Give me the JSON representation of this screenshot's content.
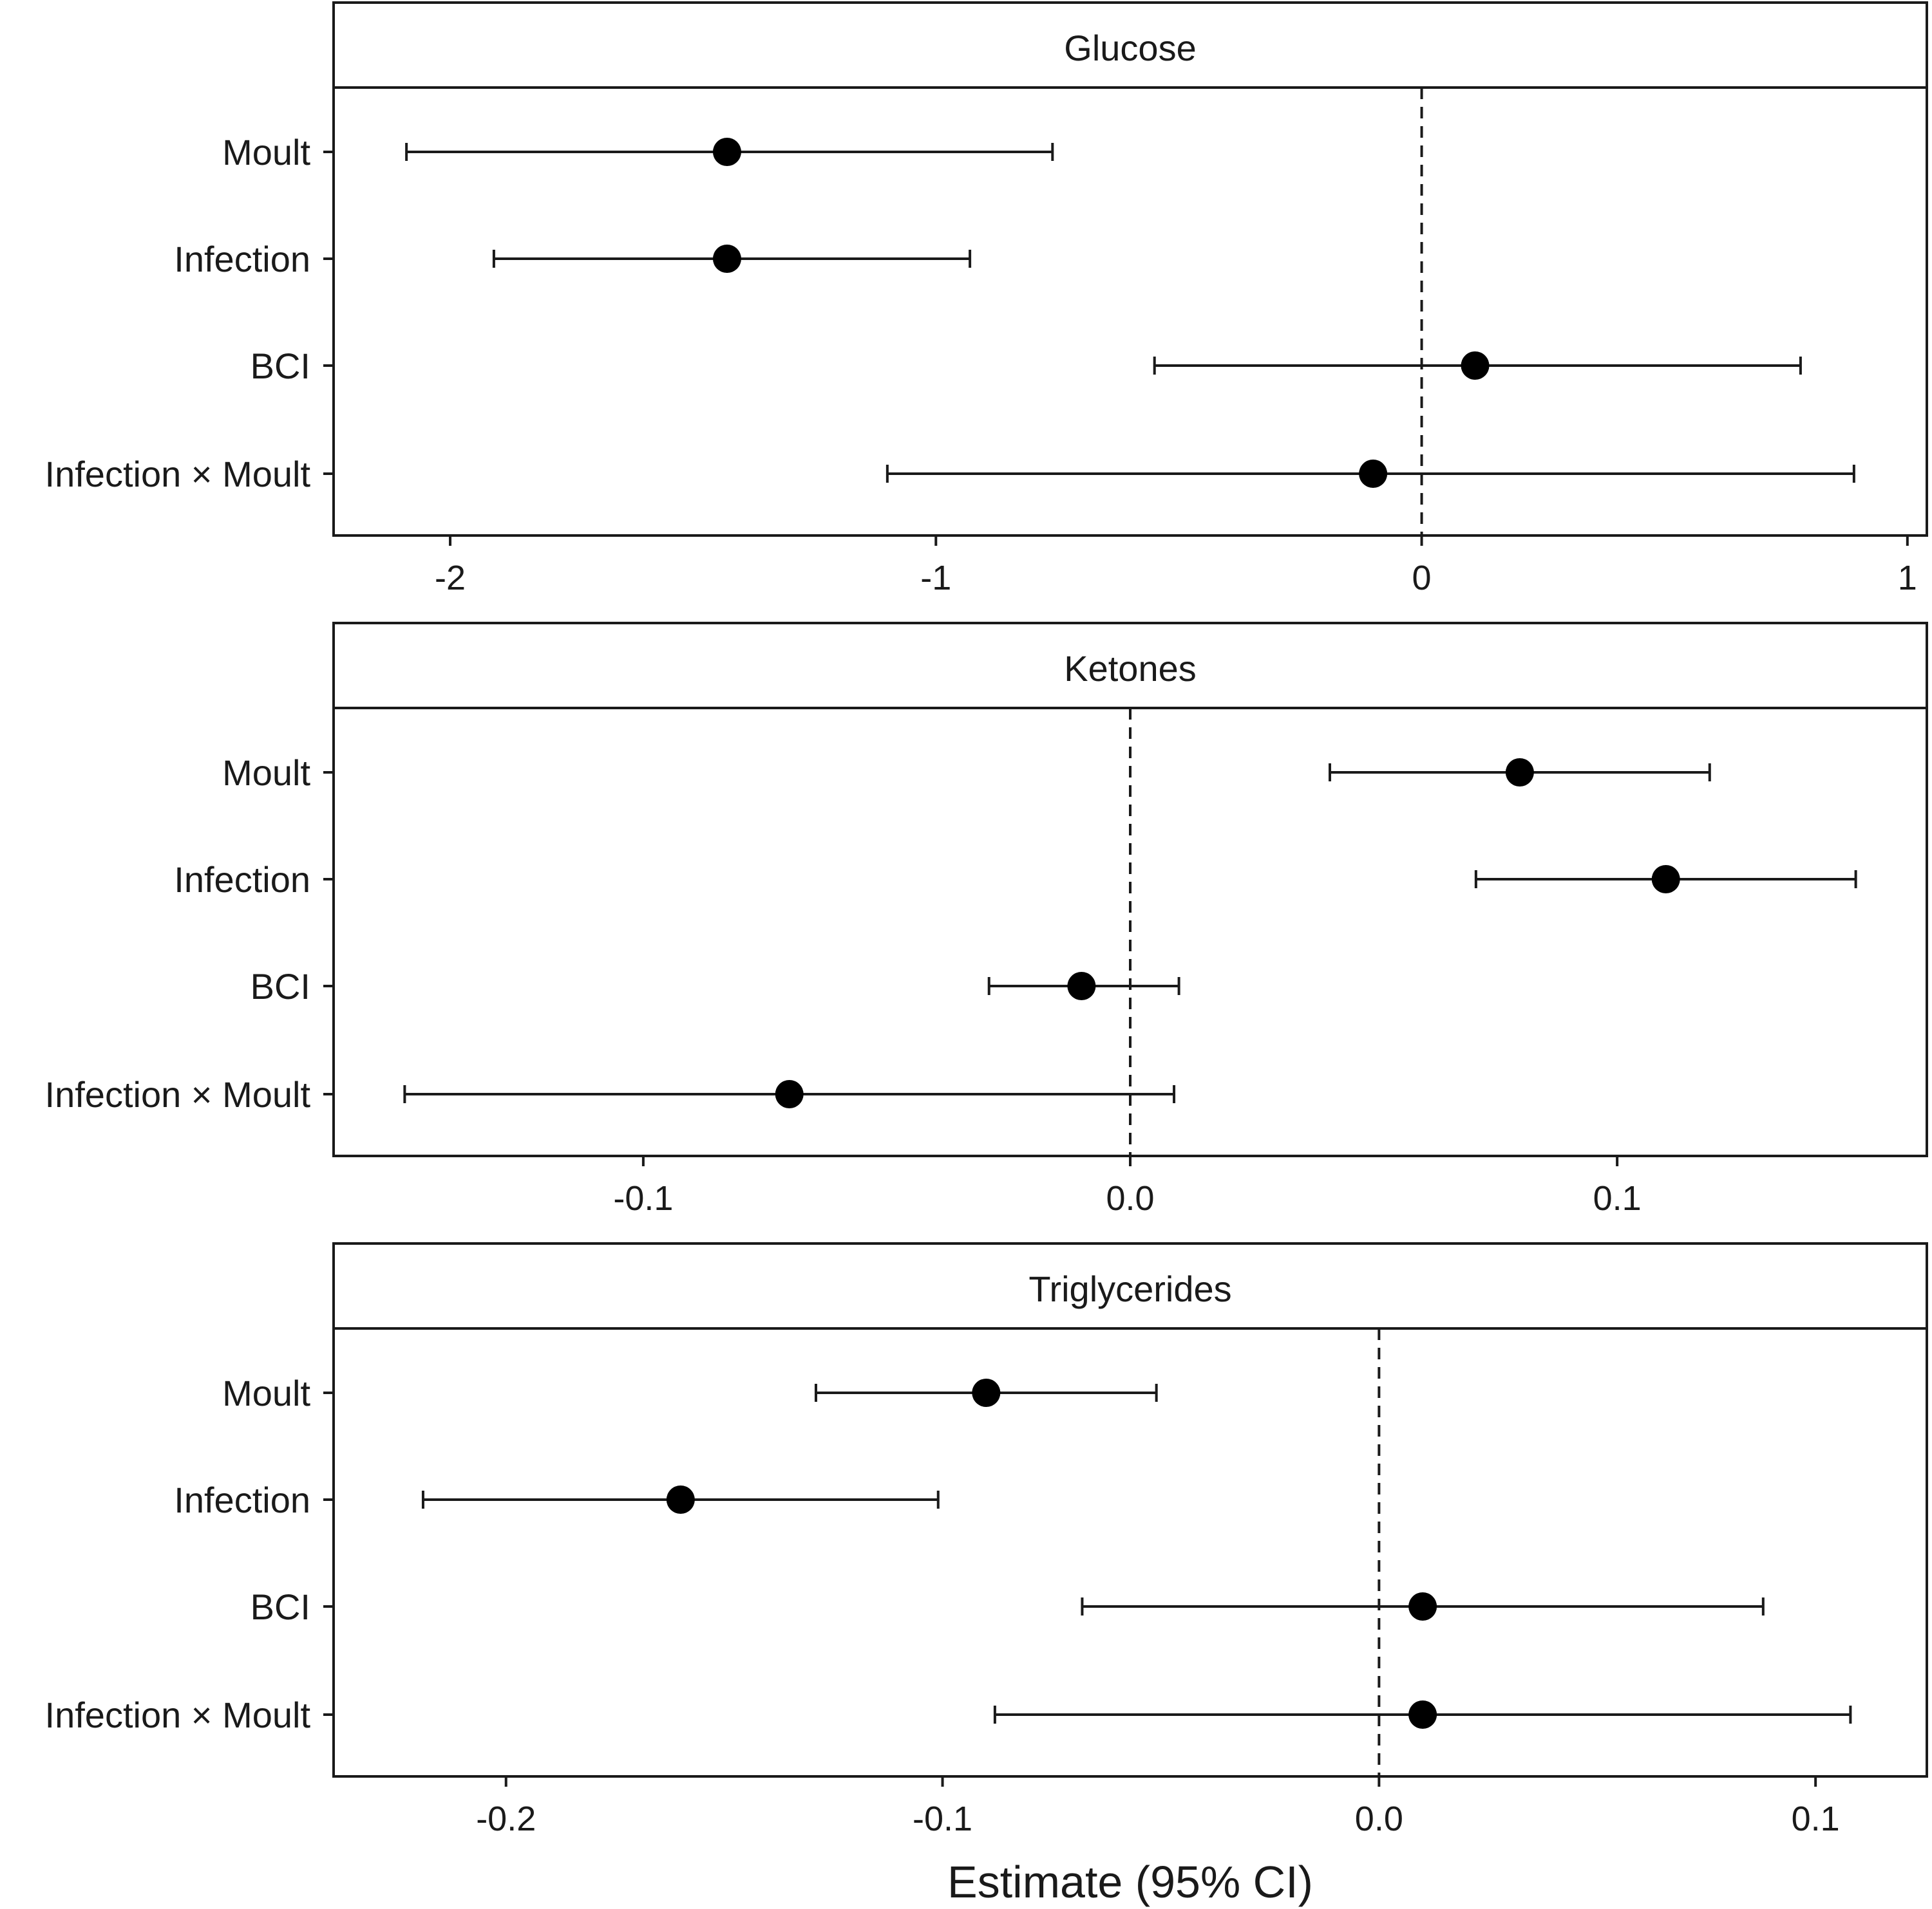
{
  "chart_data": [
    {
      "type": "forest",
      "title": "Glucose",
      "categories": [
        "Moult",
        "Infection",
        "BCI",
        "Infection × Moult"
      ],
      "estimates": [
        -1.43,
        -1.43,
        0.11,
        -0.1
      ],
      "ci_low": [
        -2.09,
        -1.91,
        -0.55,
        -1.1
      ],
      "ci_high": [
        -0.76,
        -0.93,
        0.78,
        0.89
      ],
      "xlim": [
        -2.24,
        1.04
      ],
      "xticks": [
        -2,
        -1,
        0,
        1
      ],
      "xtick_labels": [
        "-2",
        "-1",
        "0",
        "1"
      ],
      "reference_line": 0
    },
    {
      "type": "forest",
      "title": "Ketones",
      "categories": [
        "Moult",
        "Infection",
        "BCI",
        "Infection × Moult"
      ],
      "estimates": [
        0.08,
        0.11,
        -0.01,
        -0.07
      ],
      "ci_low": [
        0.041,
        0.071,
        -0.029,
        -0.149
      ],
      "ci_high": [
        0.119,
        0.149,
        0.01,
        0.009
      ],
      "xlim": [
        -0.1636,
        0.1636
      ],
      "xticks": [
        -0.1,
        0.0,
        0.1
      ],
      "xtick_labels": [
        "-0.1",
        "0.0",
        "0.1"
      ],
      "reference_line": 0
    },
    {
      "type": "forest",
      "title": "Triglycerides",
      "categories": [
        "Moult",
        "Infection",
        "BCI",
        "Infection × Moult"
      ],
      "estimates": [
        -0.09,
        -0.16,
        0.01,
        0.01
      ],
      "ci_low": [
        -0.129,
        -0.219,
        -0.068,
        -0.088
      ],
      "ci_high": [
        -0.051,
        -0.101,
        0.088,
        0.108
      ],
      "xlim": [
        -0.2395,
        0.1255
      ],
      "xticks": [
        -0.2,
        -0.1,
        0.0,
        0.1
      ],
      "xtick_labels": [
        "-0.2",
        "-0.1",
        "0.0",
        "0.1"
      ],
      "reference_line": 0
    }
  ],
  "xlabel": "Estimate (95% CI)"
}
